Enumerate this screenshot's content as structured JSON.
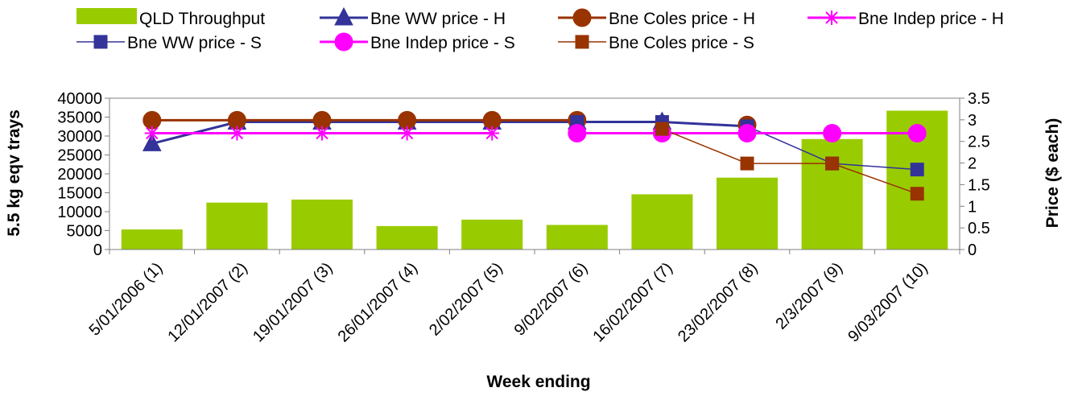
{
  "chart_data": {
    "type": "bar",
    "categories": [
      "5/01/2006 (1)",
      "12/01/2007 (2)",
      "19/01/2007 (3)",
      "26/01/2007 (4)",
      "2/02/2007 (5)",
      "9/02/2007 (6)",
      "16/02/2007 (7)",
      "23/02/2007 (8)",
      "2/3/2007 (9)",
      "9/03/2007 (10)"
    ],
    "xlabel": "Week ending",
    "ylabel": "5.5 kg eqv trays",
    "y2label": "Price ($ each)",
    "ylim": [
      0,
      40000
    ],
    "yticks": [
      "0",
      "5000",
      "10000",
      "15000",
      "20000",
      "25000",
      "30000",
      "35000",
      "40000"
    ],
    "y2lim": [
      0,
      3.5
    ],
    "y2ticks": [
      "0",
      "0.5",
      "1",
      "1.5",
      "2",
      "2.5",
      "3",
      "3.5"
    ],
    "grid": false,
    "legend_position": "top",
    "series": [
      {
        "name": "QLD Throughput",
        "kind": "bar",
        "axis": "left",
        "color": "#99cc00",
        "values": [
          5300,
          12400,
          13200,
          6200,
          7900,
          6500,
          14600,
          19000,
          29200,
          36700
        ]
      },
      {
        "name": "Bne WW price - H",
        "kind": "line",
        "axis": "right",
        "color": "#333399",
        "marker": "triangle",
        "values": [
          2.45,
          2.95,
          2.95,
          2.95,
          2.95,
          2.95,
          2.95,
          2.85,
          null,
          null
        ]
      },
      {
        "name": "Bne Coles price - H",
        "kind": "line",
        "axis": "right",
        "color": "#993300",
        "marker": "circle",
        "values": [
          2.99,
          2.99,
          2.99,
          2.99,
          2.99,
          2.99,
          null,
          2.88,
          null,
          null
        ]
      },
      {
        "name": "Bne Indep price - H",
        "kind": "line",
        "axis": "right",
        "color": "#ff00ff",
        "marker": "asterisk",
        "values": [
          2.69,
          2.69,
          2.69,
          2.69,
          2.69,
          null,
          null,
          null,
          null,
          null
        ]
      },
      {
        "name": "Bne WW price - S",
        "kind": "line",
        "axis": "right",
        "color": "#333399",
        "marker": "square",
        "values": [
          null,
          null,
          null,
          null,
          null,
          2.95,
          2.95,
          2.85,
          1.99,
          1.85
        ]
      },
      {
        "name": "Bne Indep price - S",
        "kind": "line",
        "axis": "right",
        "color": "#ff00ff",
        "marker": "circle",
        "values": [
          null,
          null,
          null,
          null,
          null,
          2.69,
          2.69,
          2.69,
          2.69,
          2.69
        ]
      },
      {
        "name": "Bne Coles price - S",
        "kind": "line",
        "axis": "right",
        "color": "#993300",
        "marker": "square",
        "values": [
          null,
          null,
          null,
          null,
          null,
          null,
          2.79,
          1.99,
          1.99,
          1.29
        ]
      }
    ]
  }
}
